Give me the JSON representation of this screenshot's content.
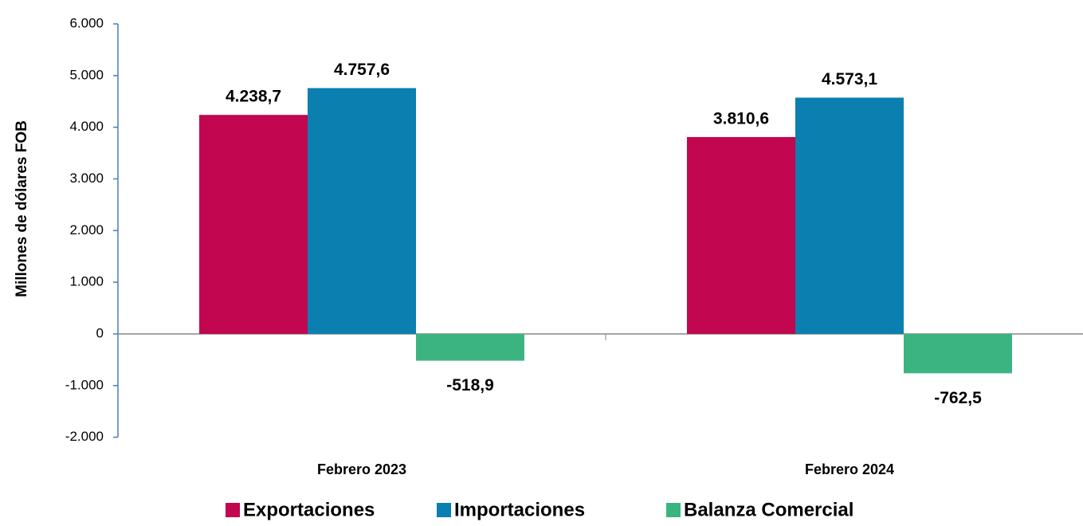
{
  "chart_data": {
    "type": "bar",
    "y_label": "Millones  de dólares FOB",
    "categories": [
      "Febrero 2023",
      "Febrero 2024"
    ],
    "series": [
      {
        "name": "Exportaciones",
        "color": "#c2064f",
        "values": [
          4238.7,
          3810.6
        ],
        "value_labels": [
          "4.238,7",
          "3.810,6"
        ]
      },
      {
        "name": "Importaciones",
        "color": "#0a7fb0",
        "values": [
          4757.6,
          4573.1
        ],
        "value_labels": [
          "4.757,6",
          "4.573,1"
        ]
      },
      {
        "name": "Balanza Comercial",
        "color": "#3cb482",
        "values": [
          -518.9,
          -762.5
        ],
        "value_labels": [
          "-518,9",
          "-762,5"
        ]
      }
    ],
    "ylim": [
      -2000,
      6000
    ],
    "yticks": [
      {
        "value": -2000,
        "label": "-2.000"
      },
      {
        "value": -1000,
        "label": "-1.000"
      },
      0,
      {
        "value": 1000,
        "label": "1.000"
      },
      {
        "value": 2000,
        "label": "2.000"
      },
      {
        "value": 3000,
        "label": "3.000"
      },
      {
        "value": 4000,
        "label": "4.000"
      },
      {
        "value": 5000,
        "label": "5.000"
      },
      {
        "value": 6000,
        "label": "6.000"
      }
    ],
    "legend": "bottom"
  }
}
